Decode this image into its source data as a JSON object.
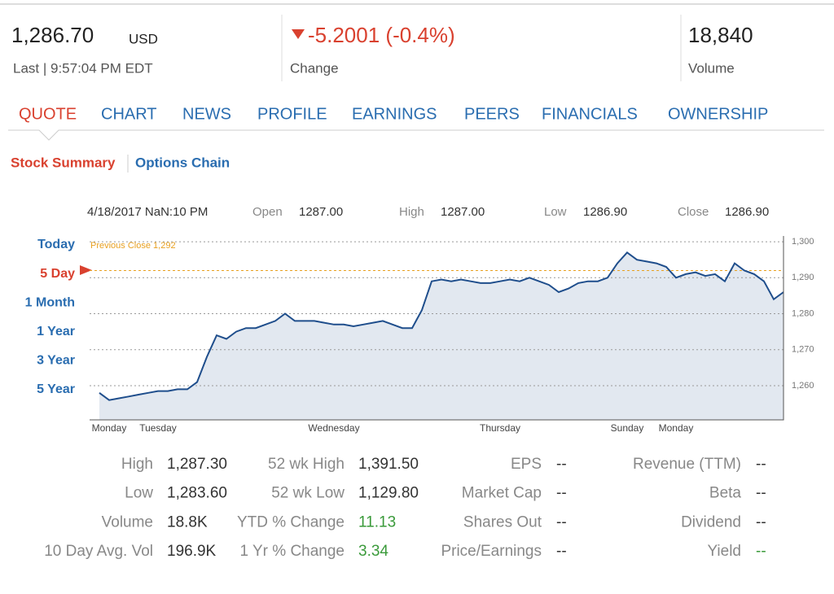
{
  "header": {
    "price": "1,286.70",
    "currency": "USD",
    "last": "Last | 9:57:04 PM EDT",
    "change": "-5.2001 (-0.4%)",
    "change_label": "Change",
    "volume": "18,840",
    "volume_label": "Volume"
  },
  "tabs": [
    "QUOTE",
    "CHART",
    "NEWS",
    "PROFILE",
    "EARNINGS",
    "PEERS",
    "FINANCIALS",
    "OWNERSHIP"
  ],
  "subtabs": [
    "Stock Summary",
    "Options Chain"
  ],
  "chart_info": [
    "4/18/2017 NaN:10 PM",
    "Open",
    "1287.00",
    "High",
    "1287.00",
    "Low",
    "1286.90",
    "Close",
    "1286.90"
  ],
  "ranges": [
    "Today",
    "5 Day",
    "1 Month",
    "1 Year",
    "3 Year",
    "5 Year"
  ],
  "chart_data": {
    "type": "line",
    "categories": [
      null,
      null,
      "Monday",
      null,
      null,
      null,
      null,
      "Tuesday",
      null,
      null,
      null,
      null,
      null,
      null,
      null,
      null,
      null,
      null,
      null,
      null,
      null,
      null,
      null,
      null,
      null,
      "Wednesday",
      null,
      null,
      null,
      null,
      null,
      null,
      null,
      null,
      null,
      null,
      null,
      null,
      null,
      null,
      null,
      null,
      "Thursday",
      null,
      null,
      null,
      null,
      null,
      null,
      null,
      null,
      null,
      null,
      null,
      null,
      "Sunday",
      null,
      null,
      null,
      null,
      "Monday",
      null,
      null,
      null,
      null,
      null,
      null,
      null,
      null,
      null,
      null,
      null
    ],
    "values": [
      null,
      1258,
      1256,
      1256.5,
      1257,
      1257.5,
      1258,
      1258.5,
      1258.5,
      1259,
      1259,
      1261,
      1268,
      1274,
      1273,
      1275,
      1276,
      1276,
      1277,
      1278,
      1280,
      1278,
      1278,
      1278,
      1277.5,
      1277,
      1277,
      1276.5,
      1277,
      1277.5,
      1278,
      1277,
      1276,
      1276,
      1281,
      1289,
      1289.5,
      1289,
      1289.5,
      1289,
      1288.5,
      1288.5,
      1289,
      1289.5,
      1289,
      1290,
      1289,
      1288,
      1286,
      1287,
      1288.5,
      1289,
      1289,
      1290,
      1294,
      1297,
      1295,
      1294.5,
      1294,
      1293,
      1290,
      1291,
      1291.5,
      1290.5,
      1291,
      1289,
      1294,
      1292,
      1291,
      1289,
      1284,
      1286
    ],
    "color": "#1f4e8c",
    "fill": "#e2e8f0",
    "ylim": [
      1250.5,
      1301.6
    ],
    "yticks": [
      {
        "value": 1260,
        "label": "1,260"
      },
      {
        "value": 1270,
        "label": "1,270"
      },
      {
        "value": 1280,
        "label": "1,280"
      },
      {
        "value": 1290,
        "label": "1,290"
      },
      {
        "value": 1300,
        "label": "1,300"
      }
    ],
    "grid": true,
    "reference_line": {
      "value": 1292,
      "label": "Previous Close 1,292",
      "color": "#e8a020"
    }
  },
  "stats": [
    [
      "High",
      "1,287.30",
      "52 wk High",
      "1,391.50",
      "EPS",
      "--",
      "Revenue (TTM)",
      "--"
    ],
    [
      "Low",
      "1,283.60",
      "52 wk Low",
      "1,129.80",
      "Market Cap",
      "--",
      "Beta",
      "--"
    ],
    [
      "Volume",
      "18.8K",
      "YTD % Change",
      "11.13",
      "Shares Out",
      "--",
      "Dividend",
      "--"
    ],
    [
      "10 Day Avg. Vol",
      "196.9K",
      "1 Yr % Change",
      "3.34",
      "Price/Earnings",
      "--",
      "Yield",
      "--"
    ]
  ]
}
